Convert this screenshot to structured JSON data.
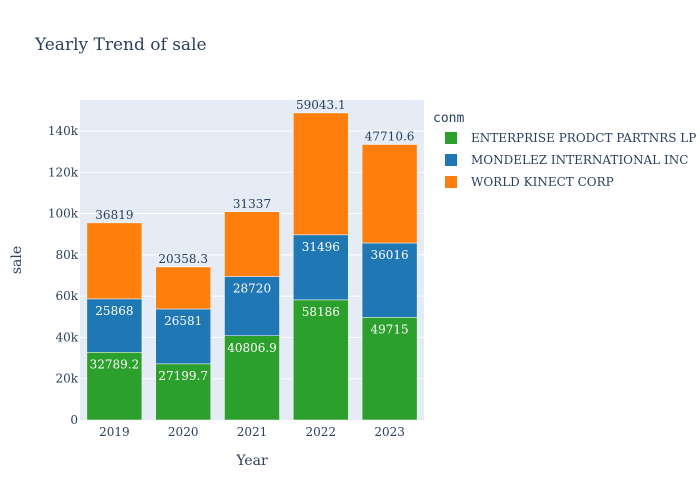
{
  "chart_data": {
    "type": "bar",
    "stacked": true,
    "title": "Yearly Trend of sale",
    "xlabel": "Year",
    "ylabel": "sale",
    "legend_title": "conm",
    "legend_position": "right",
    "categories": [
      "2019",
      "2020",
      "2021",
      "2022",
      "2023"
    ],
    "ylim": [
      0,
      155000
    ],
    "yticks": [
      0,
      20000,
      40000,
      60000,
      80000,
      100000,
      120000,
      140000
    ],
    "ytick_labels": [
      "0",
      "20k",
      "40k",
      "60k",
      "80k",
      "100k",
      "120k",
      "140k"
    ],
    "grid": true,
    "series": [
      {
        "name": "ENTERPRISE PRODCT PARTNRS LP",
        "color": "#2ca02c",
        "values": [
          32789.2,
          27199.7,
          40806.9,
          58186,
          49715
        ],
        "labels": [
          "32789.2",
          "27199.7",
          "40806.9",
          "58186",
          "49715"
        ]
      },
      {
        "name": "MONDELEZ INTERNATIONAL INC",
        "color": "#1f77b4",
        "values": [
          25868,
          26581,
          28720,
          31496,
          36016
        ],
        "labels": [
          "25868",
          "26581",
          "28720",
          "31496",
          "36016"
        ]
      },
      {
        "name": "WORLD KINECT CORP",
        "color": "#ff7f0e",
        "values": [
          36819,
          20358.3,
          31337,
          59043.1,
          47710.6
        ],
        "labels": [
          "36819",
          "20358.3",
          "31337",
          "59043.1",
          "47710.6"
        ]
      }
    ]
  }
}
